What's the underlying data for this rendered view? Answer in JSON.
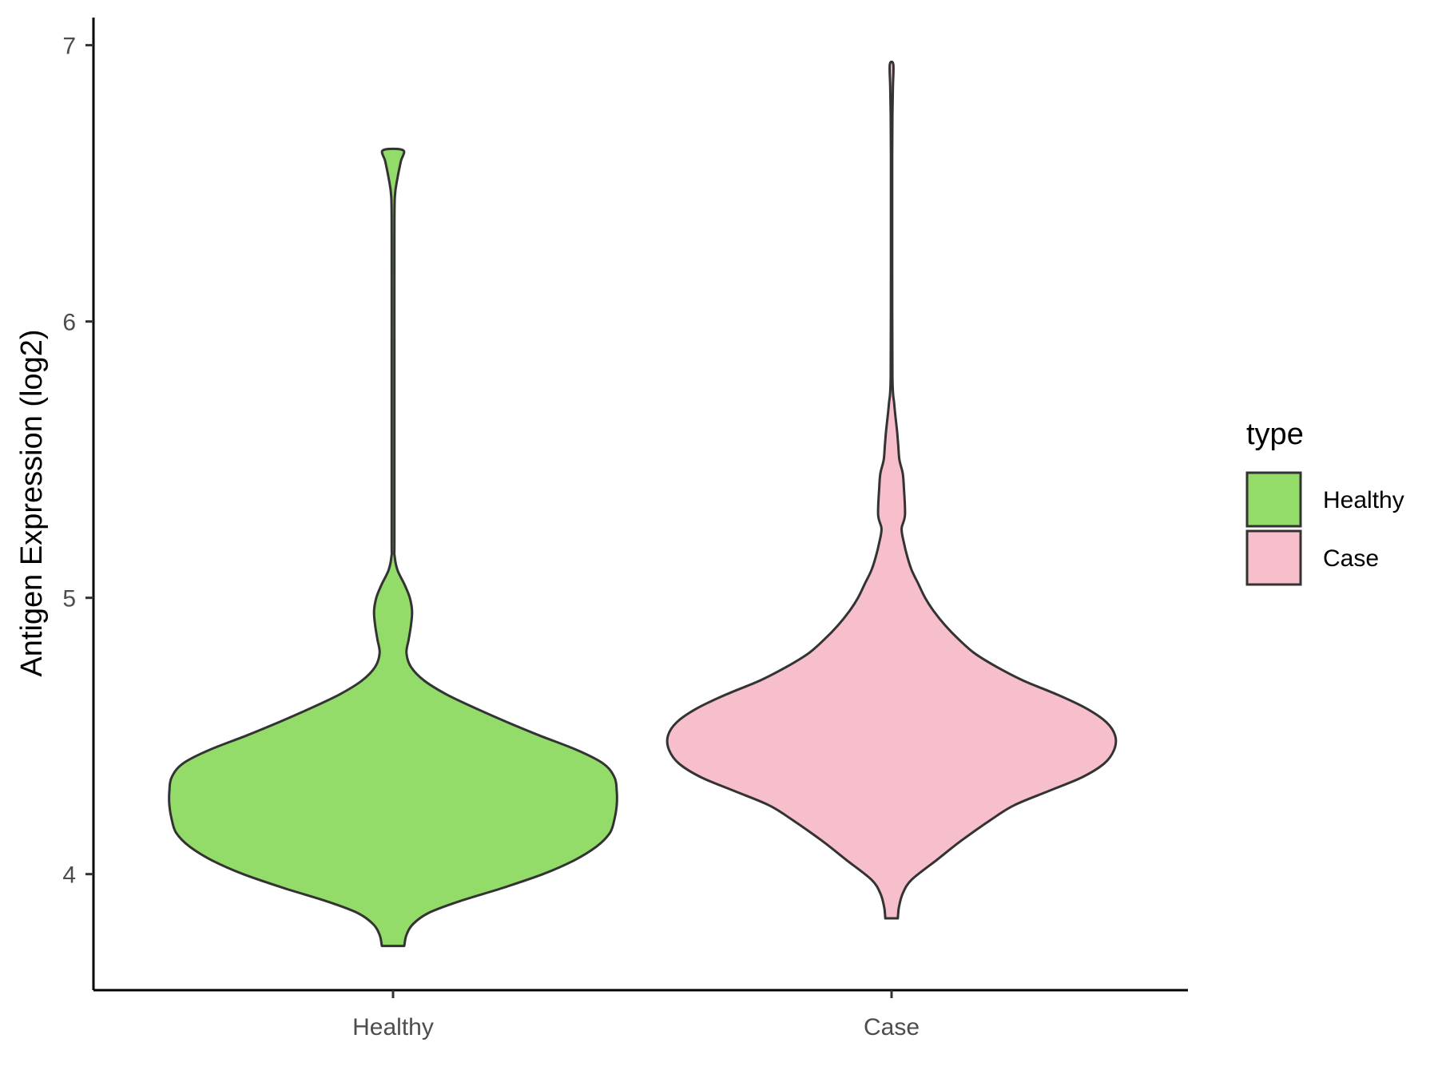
{
  "chart_data": {
    "type": "violin",
    "xlabel": "",
    "ylabel": "Antigen Expression (log2)",
    "ylim": [
      3.58,
      7.1
    ],
    "yticks": [
      4,
      5,
      6,
      7
    ],
    "categories": [
      "Healthy",
      "Case"
    ],
    "grid": false,
    "legend": {
      "title": "type",
      "placement": "right",
      "entries": [
        {
          "label": "Healthy",
          "color": "#93DC6A"
        },
        {
          "label": "Case",
          "color": "#F7BFCB"
        }
      ]
    },
    "series": [
      {
        "name": "Healthy",
        "color": "#93DC6A",
        "min": 3.74,
        "max": 6.62,
        "density": [
          [
            3.74,
            0.05
          ],
          [
            3.78,
            0.06
          ],
          [
            3.82,
            0.09
          ],
          [
            3.86,
            0.16
          ],
          [
            3.9,
            0.29
          ],
          [
            3.95,
            0.49
          ],
          [
            4.0,
            0.67
          ],
          [
            4.05,
            0.81
          ],
          [
            4.1,
            0.91
          ],
          [
            4.15,
            0.97
          ],
          [
            4.2,
            0.99
          ],
          [
            4.25,
            1.0
          ],
          [
            4.3,
            1.0
          ],
          [
            4.35,
            0.99
          ],
          [
            4.4,
            0.94
          ],
          [
            4.45,
            0.82
          ],
          [
            4.5,
            0.66
          ],
          [
            4.55,
            0.51
          ],
          [
            4.6,
            0.37
          ],
          [
            4.65,
            0.24
          ],
          [
            4.7,
            0.14
          ],
          [
            4.75,
            0.08
          ],
          [
            4.8,
            0.06
          ],
          [
            4.85,
            0.07
          ],
          [
            4.9,
            0.08
          ],
          [
            4.95,
            0.085
          ],
          [
            5.0,
            0.075
          ],
          [
            5.05,
            0.05
          ],
          [
            5.1,
            0.02
          ],
          [
            5.15,
            0.007
          ],
          [
            5.2,
            0.006
          ],
          [
            5.5,
            0.006
          ],
          [
            5.9,
            0.006
          ],
          [
            6.3,
            0.006
          ],
          [
            6.45,
            0.008
          ],
          [
            6.52,
            0.02
          ],
          [
            6.58,
            0.035
          ],
          [
            6.62,
            0.045
          ]
        ]
      },
      {
        "name": "Case",
        "color": "#F7BFCB",
        "min": 3.84,
        "max": 6.93,
        "density": [
          [
            3.84,
            0.028
          ],
          [
            3.88,
            0.033
          ],
          [
            3.93,
            0.05
          ],
          [
            3.98,
            0.09
          ],
          [
            4.05,
            0.2
          ],
          [
            4.12,
            0.31
          ],
          [
            4.2,
            0.45
          ],
          [
            4.25,
            0.55
          ],
          [
            4.3,
            0.7
          ],
          [
            4.35,
            0.85
          ],
          [
            4.4,
            0.95
          ],
          [
            4.45,
            0.995
          ],
          [
            4.5,
            1.0
          ],
          [
            4.55,
            0.96
          ],
          [
            4.6,
            0.87
          ],
          [
            4.65,
            0.74
          ],
          [
            4.7,
            0.59
          ],
          [
            4.75,
            0.47
          ],
          [
            4.8,
            0.37
          ],
          [
            4.85,
            0.3
          ],
          [
            4.9,
            0.24
          ],
          [
            4.95,
            0.19
          ],
          [
            5.0,
            0.15
          ],
          [
            5.05,
            0.12
          ],
          [
            5.1,
            0.09
          ],
          [
            5.15,
            0.07
          ],
          [
            5.2,
            0.055
          ],
          [
            5.25,
            0.045
          ],
          [
            5.3,
            0.06
          ],
          [
            5.4,
            0.055
          ],
          [
            5.45,
            0.05
          ],
          [
            5.5,
            0.035
          ],
          [
            5.55,
            0.03
          ],
          [
            5.6,
            0.025
          ],
          [
            5.7,
            0.012
          ],
          [
            5.8,
            0.004
          ],
          [
            6.2,
            0.003
          ],
          [
            6.6,
            0.003
          ],
          [
            6.75,
            0.004
          ],
          [
            6.85,
            0.006
          ],
          [
            6.93,
            0.008
          ]
        ]
      }
    ]
  }
}
